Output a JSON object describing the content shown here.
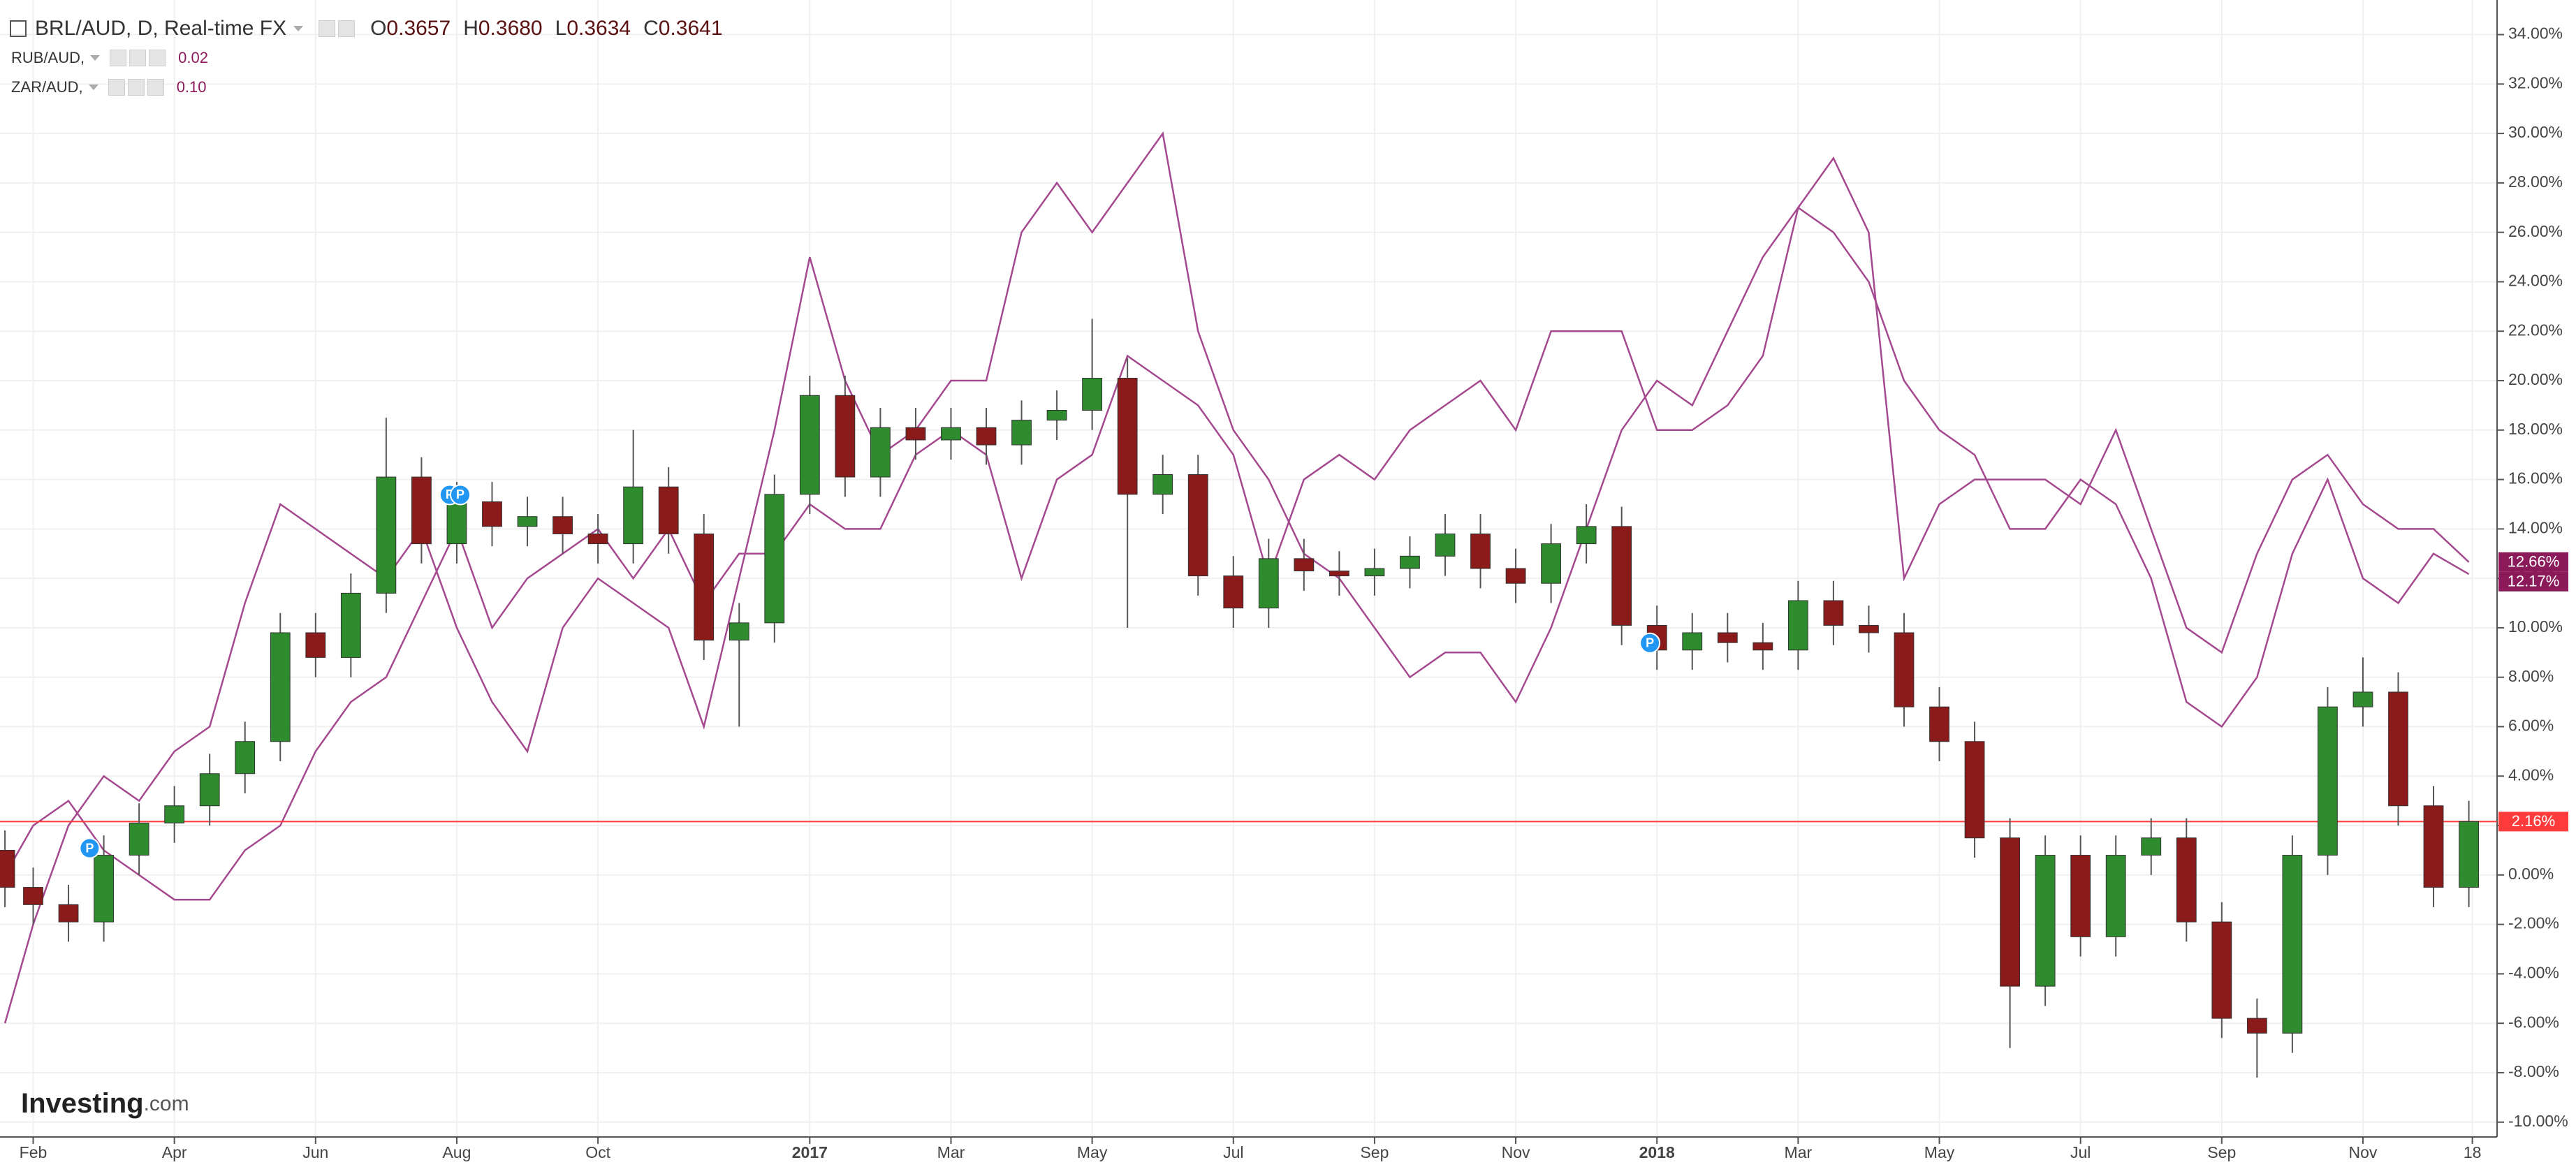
{
  "chart_data": {
    "type": "candlestick",
    "title": "BRL/AUD, D, Real-time FX",
    "quote": [
      {
        "label": "O",
        "value": "0.3657"
      },
      {
        "label": "H",
        "value": "0.3680"
      },
      {
        "label": "L",
        "value": "0.3634"
      },
      {
        "label": "C",
        "value": "0.3641"
      }
    ],
    "x": [
      0.6,
      1,
      1.5,
      2,
      2.5,
      3,
      3.5,
      4,
      4.5,
      5,
      5.5,
      6,
      6.5,
      7,
      7.5,
      8,
      8.5,
      9,
      9.5,
      10,
      10.5,
      11,
      11.5,
      12,
      12.5,
      13,
      13.5,
      14,
      14.5,
      15,
      15.5,
      16,
      16.5,
      17,
      17.5,
      18,
      18.5,
      19,
      19.5,
      20,
      20.5,
      21,
      21.5,
      22,
      22.5,
      23,
      23.5,
      24,
      24.5,
      25,
      25.5,
      26,
      26.5,
      27,
      27.5,
      28,
      28.5,
      29,
      29.5,
      30,
      30.5,
      31,
      31.5,
      32,
      32.5,
      33,
      33.5,
      34,
      34.5,
      35,
      35.5
    ],
    "open": [
      1.0,
      -0.5,
      -1.2,
      -1.9,
      0.8,
      2.1,
      2.8,
      4.1,
      5.4,
      9.8,
      8.8,
      11.4,
      16.1,
      13.4,
      15.1,
      14.1,
      14.5,
      13.8,
      13.4,
      15.7,
      13.8,
      9.5,
      10.2,
      15.4,
      19.4,
      16.1,
      18.1,
      17.6,
      18.1,
      17.4,
      18.4,
      18.8,
      20.1,
      15.4,
      16.2,
      12.1,
      10.8,
      12.8,
      12.3,
      12.1,
      12.4,
      12.9,
      13.8,
      12.4,
      11.8,
      13.4,
      14.1,
      10.1,
      9.1,
      9.8,
      9.4,
      9.1,
      11.1,
      10.1,
      9.8,
      6.8,
      5.4,
      1.5,
      -4.5,
      0.8,
      -2.5,
      0.8,
      1.5,
      -1.9,
      -5.8,
      -6.4,
      0.8,
      6.8,
      7.4,
      2.8,
      -0.5
    ],
    "high": [
      1.8,
      0.3,
      -0.4,
      1.6,
      2.9,
      3.6,
      4.9,
      6.2,
      10.6,
      10.6,
      12.2,
      18.5,
      16.9,
      15.9,
      15.9,
      15.3,
      15.3,
      14.6,
      18.0,
      16.5,
      14.6,
      11.0,
      16.2,
      20.2,
      20.2,
      18.9,
      18.9,
      18.9,
      18.9,
      19.2,
      19.6,
      22.5,
      20.9,
      17.0,
      17.0,
      12.9,
      13.6,
      13.6,
      13.1,
      13.2,
      13.7,
      14.6,
      14.6,
      13.2,
      14.2,
      15.0,
      14.9,
      10.9,
      10.6,
      10.6,
      10.2,
      11.9,
      11.9,
      10.9,
      10.6,
      7.6,
      6.2,
      2.3,
      1.6,
      1.6,
      1.6,
      2.3,
      2.3,
      -1.1,
      -5.0,
      1.6,
      7.6,
      8.8,
      8.2,
      3.6,
      3.0
    ],
    "low": [
      -1.3,
      -2.0,
      -2.7,
      -2.7,
      0.0,
      1.3,
      2.0,
      3.3,
      4.6,
      8.0,
      8.0,
      10.6,
      12.6,
      12.6,
      13.3,
      13.3,
      13.0,
      12.6,
      12.6,
      13.0,
      8.7,
      6.0,
      9.4,
      14.6,
      15.3,
      15.3,
      16.8,
      16.8,
      16.6,
      16.6,
      17.6,
      18.0,
      10.0,
      14.6,
      11.3,
      10.0,
      10.0,
      11.5,
      11.3,
      11.3,
      11.6,
      12.1,
      11.6,
      11.0,
      11.0,
      12.6,
      9.3,
      8.3,
      8.3,
      8.6,
      8.3,
      8.3,
      9.3,
      9.0,
      6.0,
      4.6,
      0.7,
      -7.0,
      -5.3,
      -3.3,
      -3.3,
      0.0,
      -2.7,
      -6.6,
      -8.2,
      -7.2,
      0.0,
      6.0,
      2.0,
      -1.3,
      -1.3
    ],
    "close": [
      -0.5,
      -1.2,
      -1.9,
      0.8,
      2.1,
      2.8,
      4.1,
      5.4,
      9.8,
      8.8,
      11.4,
      16.1,
      13.4,
      15.1,
      14.1,
      14.5,
      13.8,
      13.4,
      15.7,
      13.8,
      9.5,
      10.2,
      15.4,
      19.4,
      16.1,
      18.1,
      17.6,
      18.1,
      17.4,
      18.4,
      18.8,
      20.1,
      15.4,
      16.2,
      12.1,
      10.8,
      12.8,
      12.3,
      12.1,
      12.4,
      12.9,
      13.8,
      12.4,
      11.8,
      13.4,
      14.1,
      10.1,
      9.1,
      9.8,
      9.4,
      9.1,
      11.1,
      10.1,
      9.8,
      6.8,
      5.4,
      1.5,
      -4.5,
      0.8,
      -2.5,
      0.8,
      1.5,
      -1.9,
      -5.8,
      -6.4,
      0.8,
      6.8,
      7.4,
      2.8,
      -0.5,
      2.16
    ],
    "up_color": "#2e8b2e",
    "down_color": "#8b1a1a",
    "last_label": "2.16%",
    "price_line_color": "#ff3b3b",
    "compare": [
      {
        "name": "RUB/AUD,",
        "quote": "0.02",
        "color": "#a4498f",
        "label_color": "#8b1a5a",
        "last_label": "12.66%",
        "values": [
          0,
          2,
          3,
          1,
          0,
          -1,
          -1,
          1,
          2,
          5,
          7,
          8,
          11,
          14,
          10,
          12,
          13,
          14,
          12,
          14,
          11,
          13,
          13,
          15,
          14,
          14,
          17,
          18,
          17,
          12,
          16,
          17,
          21,
          20,
          19,
          17,
          12,
          16,
          17,
          16,
          18,
          19,
          20,
          18,
          22,
          22,
          22,
          18,
          18,
          19,
          21,
          27,
          29,
          26,
          12,
          15,
          16,
          16,
          16,
          15,
          18,
          14,
          10,
          9,
          13,
          16,
          17,
          15,
          14,
          14,
          12.66
        ]
      },
      {
        "name": "ZAR/AUD,",
        "quote": "0.10",
        "color": "#a4498f",
        "label_color": "#8b1a5a",
        "last_label": "12.17%",
        "values": [
          -6,
          -2,
          2,
          4,
          3,
          5,
          6,
          11,
          15,
          14,
          13,
          12,
          14,
          10,
          7,
          5,
          10,
          12,
          11,
          10,
          6,
          12,
          18,
          25,
          20,
          17,
          18,
          20,
          20,
          26,
          28,
          26,
          28,
          30,
          22,
          18,
          16,
          13,
          12,
          10,
          8,
          9,
          9,
          7,
          10,
          14,
          18,
          20,
          19,
          22,
          25,
          27,
          26,
          24,
          20,
          18,
          17,
          14,
          14,
          16,
          15,
          12,
          7,
          6,
          8,
          13,
          16,
          12,
          11,
          13,
          12.17
        ]
      }
    ],
    "xlim": [
      0.53,
      35.9
    ],
    "xticks": [
      {
        "value": 1,
        "label": "Feb"
      },
      {
        "value": 3,
        "label": "Apr"
      },
      {
        "value": 5,
        "label": "Jun"
      },
      {
        "value": 7,
        "label": "Aug"
      },
      {
        "value": 9,
        "label": "Oct"
      },
      {
        "value": 12,
        "label": "2017"
      },
      {
        "value": 14,
        "label": "Mar"
      },
      {
        "value": 16,
        "label": "May"
      },
      {
        "value": 18,
        "label": "Jul"
      },
      {
        "value": 20,
        "label": "Sep"
      },
      {
        "value": 22,
        "label": "Nov"
      },
      {
        "value": 24,
        "label": "2018"
      },
      {
        "value": 26,
        "label": "Mar"
      },
      {
        "value": 28,
        "label": "May"
      },
      {
        "value": 30,
        "label": "Jul"
      },
      {
        "value": 32,
        "label": "Sep"
      },
      {
        "value": 34,
        "label": "Nov"
      },
      {
        "value": 35.55,
        "label": "18"
      }
    ],
    "ylim": [
      -10.6,
      35.4
    ],
    "yticks": [
      {
        "value": 34,
        "label": "34.00%"
      },
      {
        "value": 32,
        "label": "32.00%"
      },
      {
        "value": 30,
        "label": "30.00%"
      },
      {
        "value": 28,
        "label": "28.00%"
      },
      {
        "value": 26,
        "label": "26.00%"
      },
      {
        "value": 24,
        "label": "24.00%"
      },
      {
        "value": 22,
        "label": "22.00%"
      },
      {
        "value": 20,
        "label": "20.00%"
      },
      {
        "value": 18,
        "label": "18.00%"
      },
      {
        "value": 16,
        "label": "16.00%"
      },
      {
        "value": 14,
        "label": "14.00%"
      },
      {
        "value": 12,
        "label": "12.00%"
      },
      {
        "value": 10,
        "label": "10.00%"
      },
      {
        "value": 8,
        "label": "8.00%"
      },
      {
        "value": 6,
        "label": "6.00%"
      },
      {
        "value": 4,
        "label": "4.00%"
      },
      {
        "value": 2,
        "label": "2.00%"
      },
      {
        "value": 0,
        "label": "0.00%"
      },
      {
        "value": -2,
        "label": "-2.00%"
      },
      {
        "value": -4,
        "label": "-4.00%"
      },
      {
        "value": -6,
        "label": "-6.00%"
      },
      {
        "value": -8,
        "label": "-8.00%"
      },
      {
        "value": -10,
        "label": "-10.00%"
      }
    ],
    "grid": true,
    "events": [
      {
        "x": 1.8,
        "label": "P"
      },
      {
        "x": 6.9,
        "label": "P"
      },
      {
        "x": 7.05,
        "label": "P"
      },
      {
        "x": 23.9,
        "label": "P"
      }
    ],
    "watermark": [
      "Investing",
      ".com"
    ]
  }
}
